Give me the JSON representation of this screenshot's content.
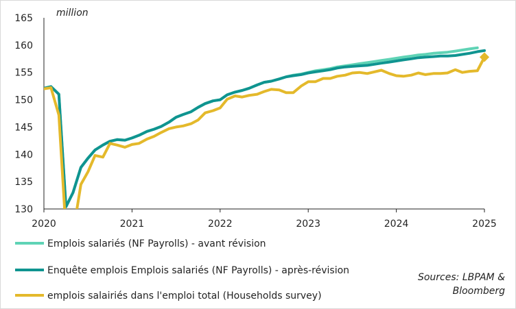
{
  "chart_data": {
    "type": "line",
    "unit_label": "million",
    "ylim": [
      130,
      165
    ],
    "xlim": [
      2020,
      2025
    ],
    "y_ticks": [
      "130",
      "135",
      "140",
      "145",
      "150",
      "155",
      "160",
      "165"
    ],
    "x_ticks": [
      "2020",
      "2021",
      "2022",
      "2023",
      "2024",
      "2025"
    ],
    "grid": false,
    "legend_position": "bottom-left",
    "series": [
      {
        "name": "Emplois salariés (NF Payrolls) - avant révision",
        "color": "#5fd3b5",
        "marker_end": false,
        "x": [
          2020.0,
          2020.08,
          2020.17,
          2020.25,
          2020.33,
          2020.42,
          2020.5,
          2020.58,
          2020.67,
          2020.75,
          2020.83,
          2020.92,
          2021.0,
          2021.08,
          2021.17,
          2021.25,
          2021.33,
          2021.42,
          2021.5,
          2021.58,
          2021.67,
          2021.75,
          2021.83,
          2021.92,
          2022.0,
          2022.08,
          2022.17,
          2022.25,
          2022.33,
          2022.42,
          2022.5,
          2022.58,
          2022.67,
          2022.75,
          2022.83,
          2022.92,
          2023.0,
          2023.08,
          2023.17,
          2023.25,
          2023.33,
          2023.42,
          2023.5,
          2023.58,
          2023.67,
          2023.75,
          2023.83,
          2023.92,
          2024.0,
          2024.08,
          2024.17,
          2024.25,
          2024.33,
          2024.42,
          2024.5,
          2024.58,
          2024.67,
          2024.75,
          2024.83,
          2024.92
        ],
        "values": [
          152.1,
          152.4,
          151.0,
          130.4,
          133.0,
          137.6,
          139.3,
          140.8,
          141.7,
          142.4,
          142.7,
          142.6,
          143.0,
          143.5,
          144.2,
          144.6,
          145.1,
          145.9,
          146.8,
          147.3,
          147.8,
          148.6,
          149.3,
          149.8,
          150.0,
          150.9,
          151.4,
          151.7,
          152.1,
          152.7,
          153.2,
          153.4,
          153.8,
          154.2,
          154.5,
          154.7,
          155.0,
          155.3,
          155.5,
          155.7,
          156.0,
          156.2,
          156.4,
          156.6,
          156.8,
          157.0,
          157.2,
          157.4,
          157.6,
          157.8,
          158.0,
          158.2,
          158.3,
          158.5,
          158.6,
          158.7,
          158.9,
          159.1,
          159.3,
          159.5
        ]
      },
      {
        "name": "Enquête emplois Emplois salariés (NF Payrolls) - après-révision",
        "color": "#0f9490",
        "marker_end": false,
        "x": [
          2020.0,
          2020.08,
          2020.17,
          2020.25,
          2020.33,
          2020.42,
          2020.5,
          2020.58,
          2020.67,
          2020.75,
          2020.83,
          2020.92,
          2021.0,
          2021.08,
          2021.17,
          2021.25,
          2021.33,
          2021.42,
          2021.5,
          2021.58,
          2021.67,
          2021.75,
          2021.83,
          2021.92,
          2022.0,
          2022.08,
          2022.17,
          2022.25,
          2022.33,
          2022.42,
          2022.5,
          2022.58,
          2022.67,
          2022.75,
          2022.83,
          2022.92,
          2023.0,
          2023.08,
          2023.17,
          2023.25,
          2023.33,
          2023.42,
          2023.5,
          2023.58,
          2023.67,
          2023.75,
          2023.83,
          2023.92,
          2024.0,
          2024.08,
          2024.17,
          2024.25,
          2024.33,
          2024.42,
          2024.5,
          2024.58,
          2024.67,
          2024.75,
          2024.83,
          2024.92,
          2025.0
        ],
        "values": [
          152.1,
          152.4,
          151.0,
          130.4,
          133.0,
          137.6,
          139.3,
          140.8,
          141.7,
          142.4,
          142.7,
          142.6,
          143.0,
          143.5,
          144.2,
          144.6,
          145.1,
          145.9,
          146.8,
          147.3,
          147.8,
          148.6,
          149.3,
          149.8,
          150.0,
          150.9,
          151.4,
          151.7,
          152.1,
          152.7,
          153.2,
          153.4,
          153.8,
          154.2,
          154.4,
          154.6,
          154.9,
          155.1,
          155.3,
          155.5,
          155.8,
          156.0,
          156.1,
          156.2,
          156.3,
          156.5,
          156.7,
          156.9,
          157.1,
          157.3,
          157.5,
          157.7,
          157.8,
          157.9,
          158.0,
          158.0,
          158.1,
          158.3,
          158.5,
          158.8,
          159.0
        ]
      },
      {
        "name": "emplois salairiés dans l'emploi total (Households survey)",
        "color": "#e4b92b",
        "marker_end": true,
        "x": [
          2020.0,
          2020.08,
          2020.17,
          2020.25,
          2020.33,
          2020.42,
          2020.5,
          2020.58,
          2020.67,
          2020.75,
          2020.83,
          2020.92,
          2021.0,
          2021.08,
          2021.17,
          2021.25,
          2021.33,
          2021.42,
          2021.5,
          2021.58,
          2021.67,
          2021.75,
          2021.83,
          2021.92,
          2022.0,
          2022.08,
          2022.17,
          2022.25,
          2022.33,
          2022.42,
          2022.5,
          2022.58,
          2022.67,
          2022.75,
          2022.83,
          2022.92,
          2023.0,
          2023.08,
          2023.17,
          2023.25,
          2023.33,
          2023.42,
          2023.5,
          2023.58,
          2023.67,
          2023.75,
          2023.83,
          2023.92,
          2024.0,
          2024.08,
          2024.17,
          2024.25,
          2024.33,
          2024.42,
          2024.5,
          2024.58,
          2024.67,
          2024.75,
          2024.83,
          2024.92,
          2025.0
        ],
        "values": [
          152.0,
          152.2,
          147.2,
          126.0,
          125.5,
          134.5,
          136.8,
          139.8,
          139.5,
          142.0,
          141.7,
          141.3,
          141.8,
          142.0,
          142.8,
          143.3,
          144.0,
          144.7,
          145.0,
          145.2,
          145.6,
          146.3,
          147.6,
          148.0,
          148.5,
          150.1,
          150.7,
          150.5,
          150.8,
          151.0,
          151.5,
          151.9,
          151.8,
          151.3,
          151.3,
          152.5,
          153.3,
          153.3,
          153.9,
          153.9,
          154.3,
          154.5,
          154.9,
          155.0,
          154.8,
          155.1,
          155.4,
          154.8,
          154.4,
          154.3,
          154.5,
          154.9,
          154.6,
          154.8,
          154.8,
          154.9,
          155.5,
          155.0,
          155.2,
          155.3,
          157.8
        ]
      }
    ]
  },
  "source_text": "Sources: LBPAM & Bloomberg"
}
